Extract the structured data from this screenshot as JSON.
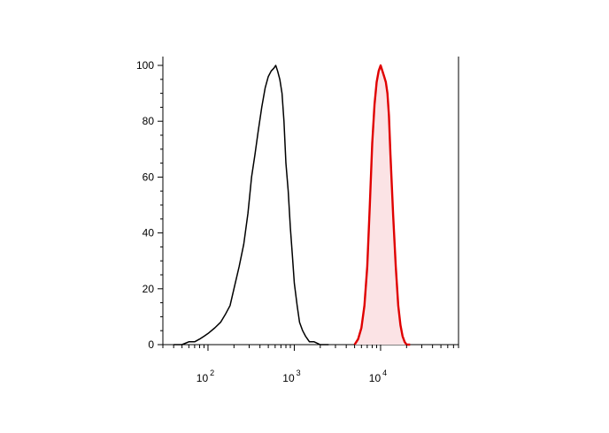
{
  "chart_data": {
    "type": "area",
    "title": "",
    "xlabel": "",
    "ylabel": "",
    "x_scale": "log",
    "xlim": [
      30,
      80000
    ],
    "ylim": [
      0,
      100
    ],
    "y_ticks": [
      0,
      20,
      40,
      60,
      80,
      100
    ],
    "x_major_ticks": [
      {
        "value": 100,
        "base": "10",
        "exp": "2"
      },
      {
        "value": 1000,
        "base": "10",
        "exp": "3"
      },
      {
        "value": 10000,
        "base": "10",
        "exp": "4"
      }
    ],
    "grid": false,
    "series": [
      {
        "style": "line",
        "color": "#000000",
        "x": [
          40,
          50,
          60,
          70,
          80,
          90,
          100,
          120,
          140,
          160,
          180,
          200,
          230,
          260,
          290,
          320,
          350,
          380,
          420,
          460,
          500,
          540,
          580,
          610,
          640,
          680,
          720,
          760,
          800,
          850,
          900,
          950,
          1000,
          1080,
          1150,
          1250,
          1350,
          1500,
          1700,
          2000,
          2500
        ],
        "y": [
          0,
          0,
          1,
          1,
          2,
          3,
          4,
          6,
          8,
          11,
          14,
          20,
          28,
          36,
          47,
          60,
          68,
          76,
          85,
          92,
          96,
          98,
          99,
          100,
          98,
          95,
          90,
          80,
          65,
          55,
          42,
          32,
          22,
          14,
          8,
          5,
          3,
          1,
          1,
          0,
          0
        ]
      },
      {
        "style": "filled",
        "color": "#e00000",
        "fill": "#fbe3e5",
        "x": [
          5000,
          5500,
          6000,
          6500,
          7000,
          7500,
          8000,
          8500,
          9000,
          9500,
          10000,
          10500,
          11000,
          11500,
          12000,
          12500,
          13000,
          14000,
          15000,
          16000,
          17000,
          18000,
          19000,
          20000,
          22000
        ],
        "y": [
          0,
          2,
          6,
          14,
          28,
          50,
          72,
          86,
          94,
          98,
          100,
          98,
          96,
          94,
          90,
          82,
          68,
          46,
          28,
          14,
          7,
          3,
          1,
          0,
          0
        ]
      }
    ]
  }
}
